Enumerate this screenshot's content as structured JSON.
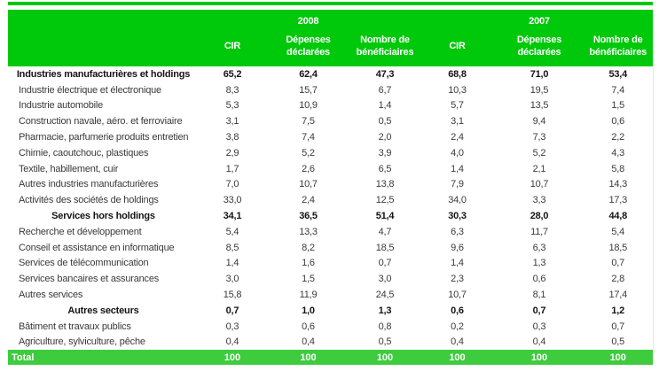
{
  "colors": {
    "header_green": "#00c80a",
    "total_green": "#3ecc3e",
    "body_text": "#3a3a3a",
    "section_text": "#141414"
  },
  "table": {
    "year_groups": [
      {
        "year": "2008",
        "columns": [
          "CIR",
          "Dépenses déclarées",
          "Nombre de bénéficiaires"
        ]
      },
      {
        "year": "2007",
        "columns": [
          "CIR",
          "Dépenses déclarées",
          "Nombre de bénéficiaires"
        ]
      }
    ],
    "rows": [
      {
        "label": "Industries manufacturières et holdings",
        "bold": true,
        "values": [
          "65,2",
          "62,4",
          "47,3",
          "68,8",
          "71,0",
          "53,4"
        ]
      },
      {
        "label": "Industrie électrique et électronique",
        "bold": false,
        "values": [
          "8,3",
          "15,7",
          "6,7",
          "10,3",
          "19,5",
          "7,4"
        ]
      },
      {
        "label": "Industrie automobile",
        "bold": false,
        "values": [
          "5,3",
          "10,9",
          "1,4",
          "5,7",
          "13,5",
          "1,5"
        ]
      },
      {
        "label": "Construction navale, aéro. et ferroviaire",
        "bold": false,
        "values": [
          "3,1",
          "7,5",
          "0,5",
          "3,1",
          "9,4",
          "0,6"
        ]
      },
      {
        "label": "Pharmacie, parfumerie produits entretien",
        "bold": false,
        "values": [
          "3,8",
          "7,4",
          "2,0",
          "2,4",
          "7,3",
          "2,2"
        ]
      },
      {
        "label": "Chimie, caoutchouc, plastiques",
        "bold": false,
        "values": [
          "2,9",
          "5,2",
          "3,9",
          "4,0",
          "5,2",
          "4,3"
        ]
      },
      {
        "label": "Textile, habillement, cuir",
        "bold": false,
        "values": [
          "1,7",
          "2,6",
          "6,5",
          "1,4",
          "2,1",
          "5,8"
        ]
      },
      {
        "label": "Autres industries manufacturières",
        "bold": false,
        "values": [
          "7,0",
          "10,7",
          "13,8",
          "7,9",
          "10,7",
          "14,3"
        ]
      },
      {
        "label": "Activités des sociétés de holdings",
        "bold": false,
        "values": [
          "33,0",
          "2,4",
          "12,5",
          "34,0",
          "3,3",
          "17,3"
        ]
      },
      {
        "label": "Services hors holdings",
        "bold": true,
        "values": [
          "34,1",
          "36,5",
          "51,4",
          "30,3",
          "28,0",
          "44,8"
        ]
      },
      {
        "label": "Recherche et développement",
        "bold": false,
        "values": [
          "5,4",
          "13,3",
          "4,7",
          "6,3",
          "11,7",
          "5,4"
        ]
      },
      {
        "label": "Conseil et assistance en informatique",
        "bold": false,
        "values": [
          "8,5",
          "8,2",
          "18,5",
          "9,6",
          "6,3",
          "18,5"
        ]
      },
      {
        "label": "Services de télécommunication",
        "bold": false,
        "values": [
          "1,4",
          "1,6",
          "0,7",
          "1,4",
          "1,3",
          "0,7"
        ]
      },
      {
        "label": "Services bancaires et assurances",
        "bold": false,
        "values": [
          "3,0",
          "1,5",
          "3,0",
          "2,3",
          "0,6",
          "2,8"
        ]
      },
      {
        "label": "Autres services",
        "bold": false,
        "values": [
          "15,8",
          "11,9",
          "24,5",
          "10,7",
          "8,1",
          "17,4"
        ]
      },
      {
        "label": "Autres secteurs",
        "bold": true,
        "values": [
          "0,7",
          "1,0",
          "1,3",
          "0,6",
          "0,7",
          "1,2"
        ]
      },
      {
        "label": "Bâtiment et travaux publics",
        "bold": false,
        "values": [
          "0,3",
          "0,6",
          "0,8",
          "0,2",
          "0,3",
          "0,7"
        ]
      },
      {
        "label": "Agriculture, sylviculture, pêche",
        "bold": false,
        "values": [
          "0,4",
          "0,4",
          "0,5",
          "0,4",
          "0,4",
          "0,5"
        ]
      }
    ],
    "total_row": {
      "label": "Total",
      "values": [
        "100",
        "100",
        "100",
        "100",
        "100",
        "100"
      ]
    }
  }
}
